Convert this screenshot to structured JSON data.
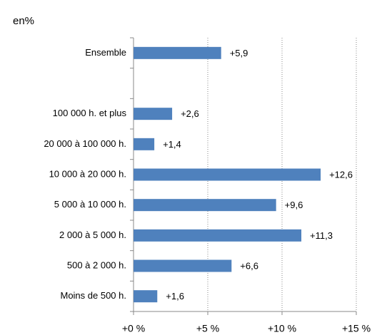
{
  "chart_data": {
    "type": "barh",
    "unit_label": "en%",
    "categories": [
      "Ensemble",
      null,
      "100 000 h. et plus",
      "20 000 à 100 000 h.",
      "10 000 à 20 000 h.",
      "5 000 à 10 000 h.",
      "2 000 à 5 000 h.",
      "500 à 2 000 h.",
      "Moins de 500 h."
    ],
    "values": [
      5.9,
      null,
      2.6,
      1.4,
      12.6,
      9.6,
      11.3,
      6.6,
      1.6
    ],
    "value_labels": [
      "+5,9",
      null,
      "+2,6",
      "+1,4",
      "+12,6",
      "+9,6",
      "+11,3",
      "+6,6",
      "+1,6"
    ],
    "color": "#4f81bd",
    "xlim": [
      0,
      15
    ],
    "xticks": [
      {
        "value": 0,
        "label": "+0 %"
      },
      {
        "value": 5,
        "label": "+5 %"
      },
      {
        "value": 10,
        "label": "+10 %"
      },
      {
        "value": 15,
        "label": "+15 %"
      }
    ],
    "grid": true
  }
}
